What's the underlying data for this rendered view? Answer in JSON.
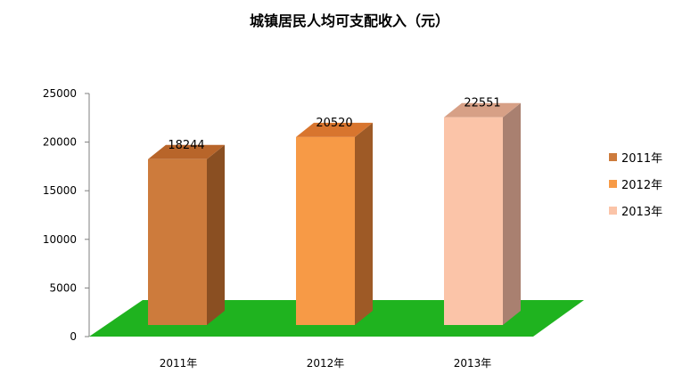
{
  "chart_data": {
    "type": "bar",
    "title": "城镇居民人均可支配收入（元）",
    "categories": [
      "2011年",
      "2012年",
      "2013年"
    ],
    "values": [
      18244,
      20520,
      22551
    ],
    "data_labels": [
      "18244",
      "20520",
      "22551"
    ],
    "y_ticks": [
      "0",
      "5000",
      "10000",
      "15000",
      "20000",
      "25000"
    ],
    "ylim": [
      0,
      25000
    ],
    "xlabel": "",
    "ylabel": "",
    "grid": false,
    "three_d": true,
    "floor_color": "#1fb31f",
    "legend_placement": "right",
    "legend": [
      {
        "name": "2011年",
        "color": "#cd7b3c"
      },
      {
        "name": "2012年",
        "color": "#f79a46"
      },
      {
        "name": "2013年",
        "color": "#fbc4a8"
      }
    ],
    "bar_colors": {
      "front": [
        "#cd7b3c",
        "#f79a46",
        "#fbc4a8"
      ],
      "side": [
        "#8a4f22",
        "#9e5a26",
        "#a98070"
      ],
      "top": [
        "#b8652a",
        "#d8752e",
        "#d7a086"
      ]
    }
  }
}
